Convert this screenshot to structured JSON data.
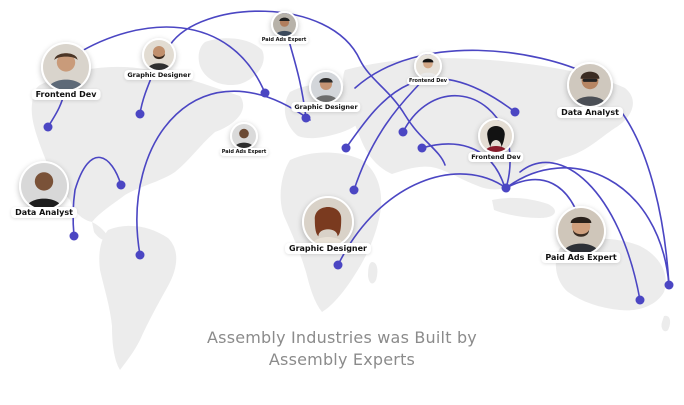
{
  "headline": {
    "line1": "Assembly Industries was Built by",
    "line2": "Assembly Experts"
  },
  "colors": {
    "accent": "#4b46c3",
    "land": "#ececec",
    "headline_text": "#8b8b8b"
  },
  "experts": [
    {
      "role": "Frontend Dev",
      "icon": "avatar-photo"
    },
    {
      "role": "Graphic Designer",
      "icon": "avatar-photo"
    },
    {
      "role": "Paid Ads Expert",
      "icon": "avatar-photo"
    },
    {
      "role": "Graphic Designer",
      "icon": "avatar-photo"
    },
    {
      "role": "Frontend Dev",
      "icon": "avatar-photo"
    },
    {
      "role": "Data Analyst",
      "icon": "avatar-photo"
    },
    {
      "role": "Paid Ads Expert",
      "icon": "avatar-photo"
    },
    {
      "role": "Frontend Dev",
      "icon": "avatar-photo"
    },
    {
      "role": "Data Analyst",
      "icon": "avatar-photo"
    },
    {
      "role": "Graphic Designer",
      "icon": "avatar-photo"
    },
    {
      "role": "Paid Ads Expert",
      "icon": "avatar-photo"
    }
  ]
}
